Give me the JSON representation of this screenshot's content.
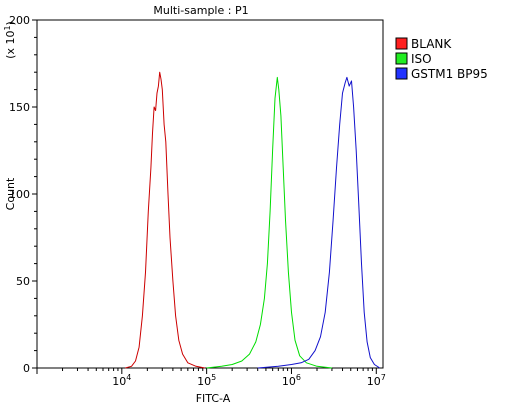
{
  "chart_data": {
    "type": "line",
    "title": "Multi-sample : P1",
    "xlabel": "FITC-A",
    "ylabel": "Count",
    "y_multiplier_label": "(x 10",
    "y_multiplier_exp": "1",
    "y_multiplier_close": ")",
    "x_scale": "log",
    "xlim": [
      1000,
      12000000
    ],
    "ylim": [
      0,
      200
    ],
    "y_ticks": [
      0,
      50,
      100,
      150,
      200
    ],
    "x_ticks": [
      {
        "value": 10000,
        "base": "10",
        "exp": "4"
      },
      {
        "value": 100000,
        "base": "10",
        "exp": "5"
      },
      {
        "value": 1000000,
        "base": "10",
        "exp": "6"
      },
      {
        "value": 10000000,
        "base": "10",
        "exp": "7"
      }
    ],
    "grid": false,
    "legend_position": "right",
    "series": [
      {
        "name": "BLANK",
        "color": "#cc0000",
        "swatch": "#ff2020",
        "points": [
          [
            11000,
            0
          ],
          [
            13000,
            1
          ],
          [
            14500,
            4
          ],
          [
            16000,
            12
          ],
          [
            17500,
            30
          ],
          [
            19000,
            55
          ],
          [
            20500,
            90
          ],
          [
            22000,
            115
          ],
          [
            23000,
            135
          ],
          [
            24000,
            150
          ],
          [
            25000,
            148
          ],
          [
            26000,
            158
          ],
          [
            27000,
            162
          ],
          [
            28000,
            170
          ],
          [
            29000,
            166
          ],
          [
            30000,
            160
          ],
          [
            31500,
            140
          ],
          [
            33000,
            130
          ],
          [
            35000,
            100
          ],
          [
            37000,
            75
          ],
          [
            40000,
            50
          ],
          [
            43000,
            30
          ],
          [
            47000,
            16
          ],
          [
            52000,
            8
          ],
          [
            60000,
            3
          ],
          [
            75000,
            1
          ],
          [
            95000,
            0
          ]
        ]
      },
      {
        "name": "ISO",
        "color": "#00dd00",
        "swatch": "#22ee22",
        "points": [
          [
            100000,
            0
          ],
          [
            150000,
            1
          ],
          [
            200000,
            2
          ],
          [
            260000,
            4
          ],
          [
            320000,
            8
          ],
          [
            380000,
            15
          ],
          [
            430000,
            25
          ],
          [
            480000,
            40
          ],
          [
            520000,
            60
          ],
          [
            560000,
            90
          ],
          [
            600000,
            125
          ],
          [
            640000,
            155
          ],
          [
            680000,
            167
          ],
          [
            710000,
            160
          ],
          [
            750000,
            145
          ],
          [
            800000,
            115
          ],
          [
            850000,
            85
          ],
          [
            920000,
            55
          ],
          [
            1000000,
            32
          ],
          [
            1100000,
            16
          ],
          [
            1250000,
            7
          ],
          [
            1500000,
            3
          ],
          [
            2000000,
            1
          ],
          [
            3000000,
            0
          ]
        ]
      },
      {
        "name": "GSTM1 BP95",
        "color": "#1111cc",
        "swatch": "#2233ff",
        "points": [
          [
            400000,
            0
          ],
          [
            700000,
            1
          ],
          [
            1000000,
            2
          ],
          [
            1300000,
            3
          ],
          [
            1600000,
            5
          ],
          [
            1900000,
            10
          ],
          [
            2200000,
            18
          ],
          [
            2500000,
            32
          ],
          [
            2800000,
            55
          ],
          [
            3100000,
            85
          ],
          [
            3400000,
            115
          ],
          [
            3700000,
            140
          ],
          [
            4000000,
            158
          ],
          [
            4300000,
            164
          ],
          [
            4500000,
            167
          ],
          [
            4800000,
            162
          ],
          [
            5100000,
            165
          ],
          [
            5400000,
            150
          ],
          [
            5800000,
            125
          ],
          [
            6200000,
            95
          ],
          [
            6700000,
            60
          ],
          [
            7200000,
            32
          ],
          [
            7800000,
            15
          ],
          [
            8500000,
            6
          ],
          [
            9500000,
            2
          ],
          [
            11000000,
            0
          ]
        ]
      }
    ]
  }
}
